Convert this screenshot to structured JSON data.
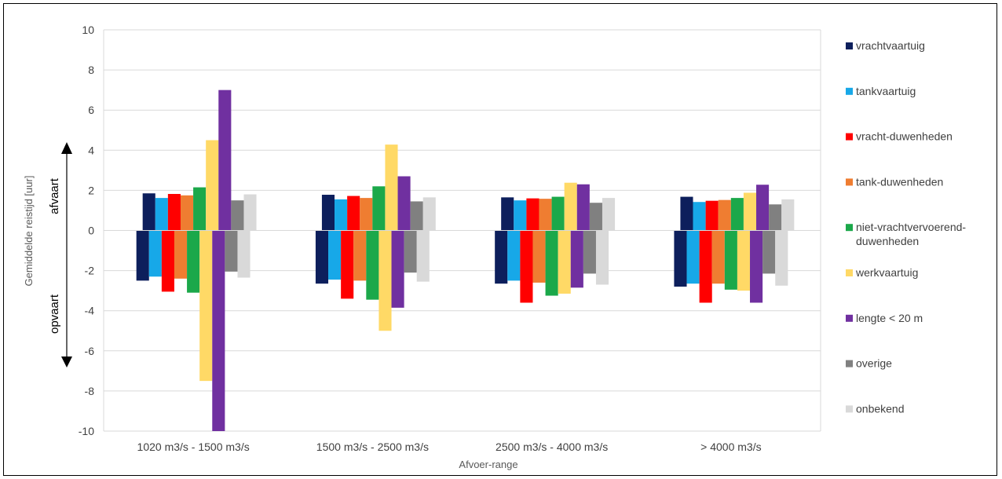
{
  "chart_data": {
    "type": "bar",
    "title": "",
    "xlabel": "Afvoer-range",
    "ylabel": "Gemiddelde reistijd [uur]",
    "ylim": [
      -10,
      10
    ],
    "yticks": [
      10,
      8,
      6,
      4,
      2,
      0,
      -2,
      -4,
      -6,
      -8,
      -10
    ],
    "grid": true,
    "legend_position": "right",
    "categories": [
      "1020 m3/s - 1500 m3/s",
      "1500 m3/s - 2500 m3/s",
      "2500 m3/s - 4000 m3/s",
      "> 4000 m3/s"
    ],
    "direction_labels": {
      "up": "afvaart",
      "down": "opvaart"
    },
    "series": [
      {
        "name": "vrachtvaartuig",
        "color": "#0d1f5c",
        "afvaart": [
          1.85,
          1.78,
          1.65,
          1.68
        ],
        "opvaart": [
          -2.5,
          -2.65,
          -2.65,
          -2.8
        ]
      },
      {
        "name": "tankvaartuig",
        "color": "#17a8e8",
        "afvaart": [
          1.62,
          1.55,
          1.5,
          1.42
        ],
        "opvaart": [
          -2.3,
          -2.45,
          -2.5,
          -2.65
        ]
      },
      {
        "name": "vracht-duwenheden",
        "color": "#ff0000",
        "afvaart": [
          1.82,
          1.72,
          1.6,
          1.48
        ],
        "opvaart": [
          -3.05,
          -3.4,
          -3.6,
          -3.6
        ]
      },
      {
        "name": "tank-duwenheden",
        "color": "#ef7d31",
        "afvaart": [
          1.75,
          1.62,
          1.58,
          1.52
        ],
        "opvaart": [
          -2.4,
          -2.5,
          -2.6,
          -2.65
        ]
      },
      {
        "name": "niet-vrachtvervoerend-duwenheden",
        "color": "#1ba84a",
        "afvaart": [
          2.15,
          2.2,
          1.68,
          1.62
        ],
        "opvaart": [
          -3.1,
          -3.45,
          -3.25,
          -2.95
        ]
      },
      {
        "name": "werkvaartuig",
        "color": "#ffd966",
        "afvaart": [
          4.5,
          4.28,
          2.38,
          1.88
        ],
        "opvaart": [
          -7.5,
          -5.0,
          -3.15,
          -3.0
        ]
      },
      {
        "name": "lengte < 20 m",
        "color": "#7030a0",
        "afvaart": [
          7.0,
          2.7,
          2.3,
          2.28
        ],
        "opvaart": [
          -10.0,
          -3.85,
          -2.85,
          -3.6
        ]
      },
      {
        "name": "overige",
        "color": "#808080",
        "afvaart": [
          1.5,
          1.45,
          1.38,
          1.3
        ],
        "opvaart": [
          -2.05,
          -2.1,
          -2.15,
          -2.15
        ]
      },
      {
        "name": "onbekend",
        "color": "#d9d9d9",
        "afvaart": [
          1.8,
          1.65,
          1.62,
          1.55
        ],
        "opvaart": [
          -2.35,
          -2.55,
          -2.7,
          -2.75
        ]
      }
    ]
  }
}
